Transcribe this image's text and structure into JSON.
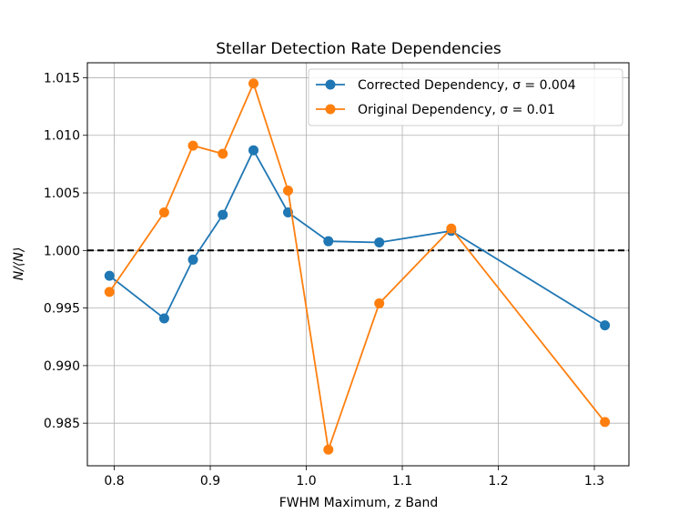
{
  "chart_data": {
    "type": "line",
    "title": "Stellar Detection Rate Dependencies",
    "xlabel": "FWHM Maximum, z Band",
    "ylabel": "N/⟨N⟩",
    "xlim": [
      0.772,
      1.336
    ],
    "ylim": [
      0.9813,
      1.0163
    ],
    "xticks": [
      0.8,
      0.9,
      1.0,
      1.1,
      1.2,
      1.3
    ],
    "xtick_labels": [
      "0.8",
      "0.9",
      "1.0",
      "1.1",
      "1.2",
      "1.3"
    ],
    "yticks": [
      0.985,
      0.99,
      0.995,
      1.0,
      1.005,
      1.01,
      1.015
    ],
    "ytick_labels": [
      "0.985",
      "0.990",
      "0.995",
      "1.000",
      "1.005",
      "1.010",
      "1.015"
    ],
    "grid": true,
    "legend_position": "upper right",
    "reference_line": {
      "y": 1.0,
      "style": "dashed",
      "color": "#000000"
    },
    "series": [
      {
        "name": "Corrected Dependency, σ = 0.004",
        "color": "#1f77b4",
        "x": [
          0.795,
          0.852,
          0.882,
          0.913,
          0.945,
          0.981,
          1.023,
          1.076,
          1.151,
          1.311
        ],
        "y": [
          0.9978,
          0.9941,
          0.9992,
          1.0031,
          1.0087,
          1.0033,
          1.0008,
          1.0007,
          1.0017,
          0.9935
        ]
      },
      {
        "name": "Original Dependency, σ = 0.01",
        "color": "#ff7f0e",
        "x": [
          0.795,
          0.852,
          0.882,
          0.913,
          0.945,
          0.981,
          1.023,
          1.076,
          1.151,
          1.311
        ],
        "y": [
          0.9964,
          1.0033,
          1.0091,
          1.0084,
          1.0145,
          1.0052,
          0.9827,
          0.9954,
          1.0019,
          0.9851
        ]
      }
    ]
  }
}
